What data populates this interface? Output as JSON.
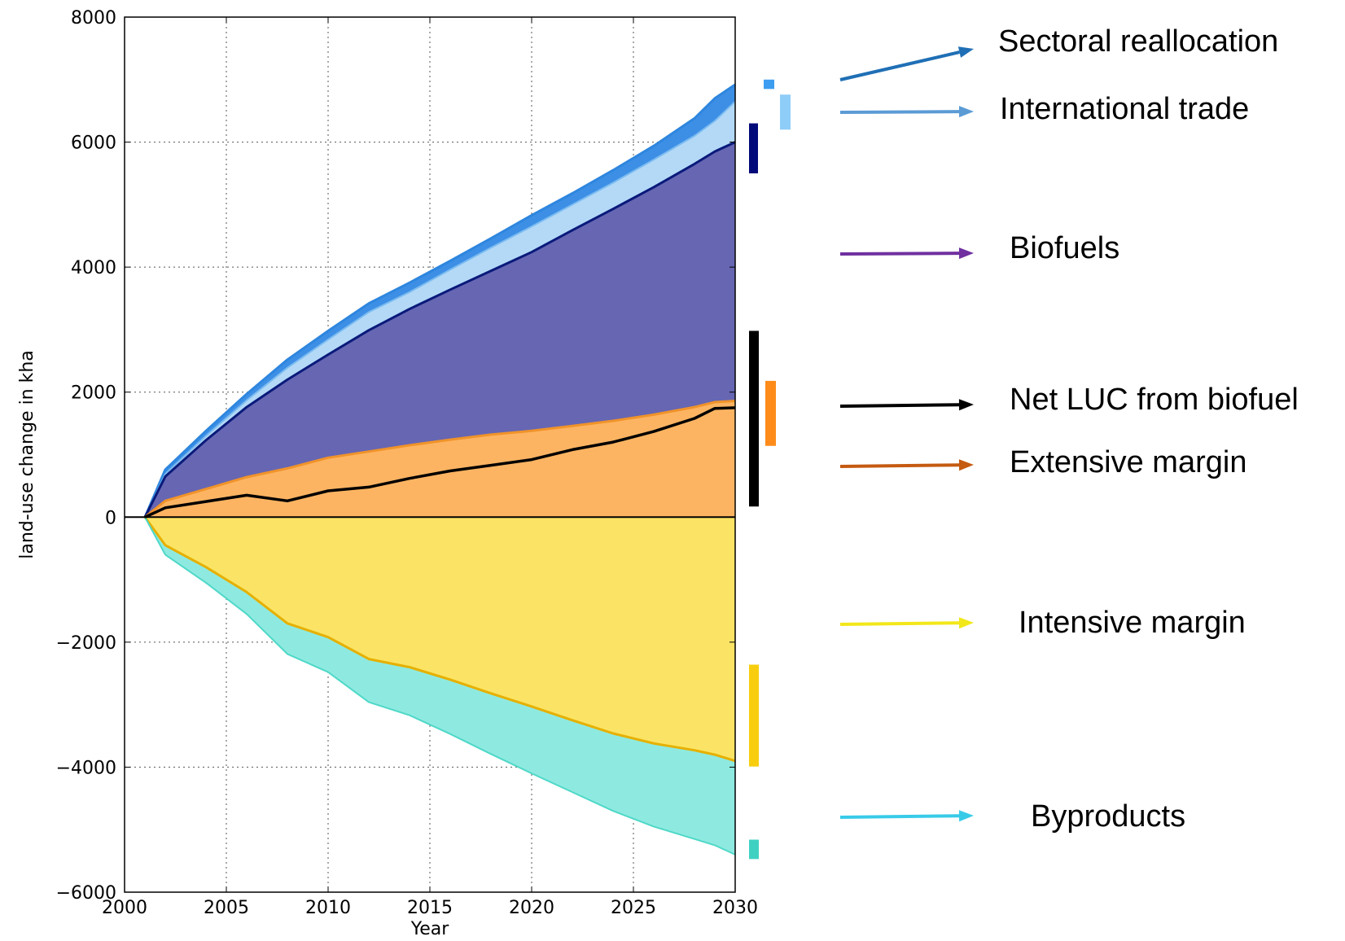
{
  "chart_data": {
    "type": "area",
    "xlabel": "Year",
    "ylabel": "land-use change in kha",
    "xlim": [
      2000,
      2030
    ],
    "ylim": [
      -6000,
      8000
    ],
    "xticks": [
      "2000",
      "2005",
      "2010",
      "2015",
      "2020",
      "2025",
      "2030"
    ],
    "yticks": [
      "8000",
      "6000",
      "4000",
      "2000",
      "0",
      "−2000",
      "−4000",
      "−6000"
    ],
    "grid": true,
    "x": [
      2001,
      2002,
      2004,
      2006,
      2008,
      2010,
      2012,
      2014,
      2016,
      2018,
      2020,
      2022,
      2024,
      2026,
      2028,
      2029,
      2030
    ],
    "series": [
      {
        "name": "Extensive margin",
        "color": "#fdb462",
        "values": [
          0,
          260,
          450,
          640,
          780,
          950,
          1050,
          1150,
          1240,
          1320,
          1380,
          1460,
          1540,
          1640,
          1760,
          1840,
          1860
        ]
      },
      {
        "name": "Biofuels",
        "color": "#6666b3",
        "values": [
          0,
          650,
          1230,
          1760,
          2200,
          2600,
          2990,
          3330,
          3640,
          3940,
          4240,
          4590,
          4930,
          5280,
          5650,
          5850,
          6000
        ]
      },
      {
        "name": "International trade",
        "color": "#b3d9f7",
        "values": [
          0,
          690,
          1300,
          1870,
          2390,
          2840,
          3280,
          3600,
          3960,
          4310,
          4650,
          5000,
          5350,
          5720,
          6100,
          6340,
          6650
        ]
      },
      {
        "name": "Sectoral reallocation",
        "color": "#3d8fe6",
        "values": [
          0,
          760,
          1380,
          1970,
          2520,
          2980,
          3420,
          3750,
          4100,
          4460,
          4830,
          5180,
          5550,
          5940,
          6380,
          6700,
          6920
        ]
      },
      {
        "name": "Net LUC from biofuel",
        "color": "#000000",
        "values": [
          0,
          150,
          250,
          350,
          260,
          420,
          480,
          620,
          740,
          830,
          920,
          1080,
          1200,
          1370,
          1580,
          1740,
          1750
        ]
      },
      {
        "name": "Intensive margin",
        "color": "#fbe465",
        "values": [
          0,
          -450,
          -800,
          -1200,
          -1700,
          -1920,
          -2270,
          -2400,
          -2600,
          -2820,
          -3030,
          -3250,
          -3460,
          -3620,
          -3730,
          -3800,
          -3900
        ]
      },
      {
        "name": "Byproducts",
        "color": "#8eeae0",
        "values": [
          0,
          -600,
          -1050,
          -1550,
          -2190,
          -2480,
          -2960,
          -3170,
          -3470,
          -3790,
          -4100,
          -4400,
          -4700,
          -4950,
          -5150,
          -5250,
          -5400
        ]
      }
    ],
    "range_bars": [
      {
        "name": "Sectoral reallocation",
        "color": "#3d9df0",
        "range": [
          6850,
          7000
        ]
      },
      {
        "name": "International trade",
        "color": "#8ecdf8",
        "range": [
          6200,
          6760
        ]
      },
      {
        "name": "Biofuels",
        "color": "#000a78",
        "range": [
          5500,
          6300
        ]
      },
      {
        "name": "Net LUC from biofuel",
        "color": "#000000",
        "range": [
          170,
          2980
        ]
      },
      {
        "name": "Extensive margin",
        "color": "#ff8c1a",
        "range": [
          1140,
          2180
        ]
      },
      {
        "name": "Intensive margin",
        "color": "#f8cd0d",
        "range": [
          -3990,
          -2360
        ]
      },
      {
        "name": "Byproducts",
        "color": "#3ed1c2",
        "range": [
          -5470,
          -5160
        ]
      }
    ],
    "annotations": [
      {
        "text": "Sectoral reallocation",
        "arrow_color": "#1f6fb5"
      },
      {
        "text": "International trade",
        "arrow_color": "#5b9bd5"
      },
      {
        "text": "Biofuels",
        "arrow_color": "#7030a0"
      },
      {
        "text": "Net LUC from biofuel",
        "arrow_color": "#000000"
      },
      {
        "text": "Extensive margin",
        "arrow_color": "#c55a11"
      },
      {
        "text": "Intensive margin",
        "arrow_color": "#f2e71a"
      },
      {
        "text": "Byproducts",
        "arrow_color": "#38cbe8"
      }
    ]
  }
}
